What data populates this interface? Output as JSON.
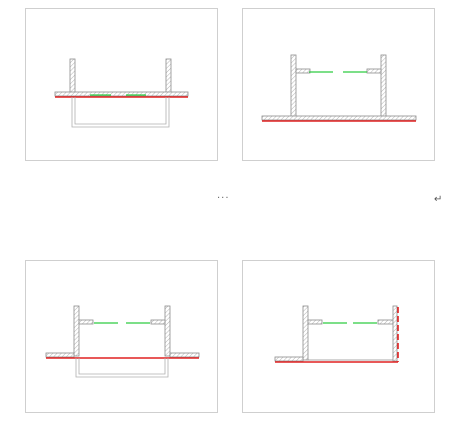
{
  "text": {
    "ellipsis": "···",
    "return_mark": "↵"
  },
  "colors": {
    "outline": "#8c8c8c",
    "hatch": "#b4b4b4",
    "highlight": "#e02020",
    "dim_line": "#2ecc40"
  },
  "icons": {
    "paragraph_mark": "return-arrow-icon"
  }
}
